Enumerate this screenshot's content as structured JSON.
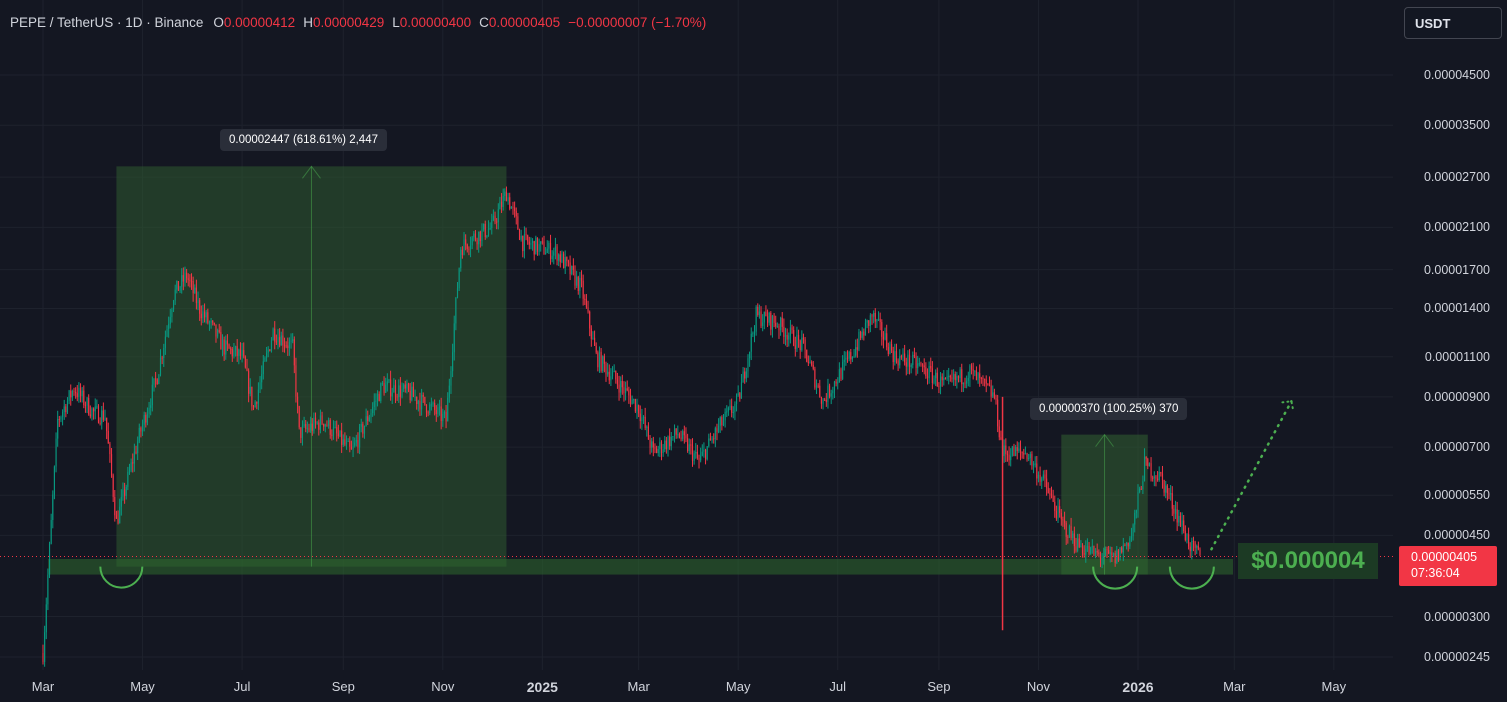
{
  "header": {
    "symbol": "PEPE / TetherUS · 1D · Binance",
    "o_label": "O",
    "o": "0.00000412",
    "h_label": "H",
    "h": "0.00000429",
    "l_label": "L",
    "l": "0.00000400",
    "c_label": "C",
    "c": "0.00000405",
    "change": "−0.00000007 (−1.70%)"
  },
  "currency_button": "USDT",
  "colors": {
    "background": "#141722",
    "up": "#089981",
    "down": "#f23645",
    "range_fill": "#2e5a30",
    "support_zone": "#2e6a2e",
    "accent_green": "#4caf50"
  },
  "annotations": {
    "measure1": "0.00002447 (618.61%) 2,447",
    "measure2": "0.00000370 (100.25%) 370",
    "support_label": "$0.000004"
  },
  "price_tag": {
    "price": "0.00000405",
    "countdown": "07:36:04"
  },
  "chart_data": {
    "type": "candlestick",
    "title": "PEPE / TetherUS · 1D · Binance",
    "y_scale": "log",
    "y_ticks": [
      "0.00004500",
      "0.00003500",
      "0.00002700",
      "0.00002100",
      "0.00001700",
      "0.00001400",
      "0.00001100",
      "0.00000900",
      "0.00000700",
      "0.00000550",
      "0.00000450",
      "0.00000300",
      "0.00000245"
    ],
    "x_ticks": [
      "Mar",
      "May",
      "Jul",
      "Sep",
      "Nov",
      "2025",
      "Mar",
      "May",
      "Jul",
      "Sep",
      "Nov",
      "2026",
      "Mar",
      "May"
    ],
    "ylim": [
      2.3e-06,
      5.2e-05
    ],
    "legend": "none",
    "grid": true,
    "series": [
      {
        "values": [
          [
            "2024-03-01",
            2.5e-06
          ],
          [
            "2024-03-10",
            8e-06
          ],
          [
            "2024-03-20",
            9.4e-06
          ],
          [
            "2024-04-01",
            8.3e-06
          ],
          [
            "2024-04-08",
            8.2e-06
          ],
          [
            "2024-04-15",
            4.8e-06
          ],
          [
            "2024-04-28",
            7.2e-06
          ],
          [
            "2024-05-10",
            1e-05
          ],
          [
            "2024-05-20",
            1.5e-05
          ],
          [
            "2024-05-28",
            1.65e-05
          ],
          [
            "2024-06-05",
            1.4e-05
          ],
          [
            "2024-06-20",
            1.15e-05
          ],
          [
            "2024-07-01",
            1.1e-05
          ],
          [
            "2024-07-08",
            8.5e-06
          ],
          [
            "2024-07-20",
            1.25e-05
          ],
          [
            "2024-08-01",
            1.15e-05
          ],
          [
            "2024-08-05",
            7.5e-06
          ],
          [
            "2024-08-20",
            8e-06
          ],
          [
            "2024-09-06",
            6.8e-06
          ],
          [
            "2024-09-25",
            9.5e-06
          ],
          [
            "2024-10-10",
            9.2e-06
          ],
          [
            "2024-10-25",
            8.5e-06
          ],
          [
            "2024-11-03",
            8e-06
          ],
          [
            "2024-11-12",
            1.9e-05
          ],
          [
            "2024-11-20",
            2e-05
          ],
          [
            "2024-12-01",
            2.1e-05
          ],
          [
            "2024-12-10",
            2.5e-05
          ],
          [
            "2024-12-20",
            1.95e-05
          ],
          [
            "2025-01-10",
            1.85e-05
          ],
          [
            "2025-01-25",
            1.55e-05
          ],
          [
            "2025-02-03",
            1.1e-05
          ],
          [
            "2025-02-15",
            9.8e-06
          ],
          [
            "2025-03-01",
            8.5e-06
          ],
          [
            "2025-03-10",
            6.8e-06
          ],
          [
            "2025-03-25",
            7.5e-06
          ],
          [
            "2025-04-07",
            6.5e-06
          ],
          [
            "2025-04-20",
            7.8e-06
          ],
          [
            "2025-05-01",
            8.8e-06
          ],
          [
            "2025-05-12",
            1.35e-05
          ],
          [
            "2025-05-25",
            1.3e-05
          ],
          [
            "2025-06-10",
            1.15e-05
          ],
          [
            "2025-06-22",
            8.8e-06
          ],
          [
            "2025-07-10",
            1.12e-05
          ],
          [
            "2025-07-22",
            1.35e-05
          ],
          [
            "2025-08-05",
            1.1e-05
          ],
          [
            "2025-08-20",
            1.05e-05
          ],
          [
            "2025-09-05",
            9.5e-06
          ],
          [
            "2025-09-20",
            1.02e-05
          ],
          [
            "2025-10-05",
            9e-06
          ],
          [
            "2025-10-10",
            6.8e-06
          ],
          [
            "2025-10-25",
            6.8e-06
          ],
          [
            "2025-11-05",
            5.8e-06
          ],
          [
            "2025-11-15",
            4.8e-06
          ],
          [
            "2025-11-25",
            4.3e-06
          ],
          [
            "2025-12-05",
            4.1e-06
          ],
          [
            "2025-12-18",
            4e-06
          ],
          [
            "2025-12-28",
            4.5e-06
          ],
          [
            "2026-01-05",
            6.4e-06
          ],
          [
            "2026-01-15",
            6e-06
          ],
          [
            "2026-01-25",
            5e-06
          ],
          [
            "2026-02-03",
            4.2e-06
          ],
          [
            "2026-02-08",
            4.05e-06
          ]
        ]
      }
    ]
  }
}
